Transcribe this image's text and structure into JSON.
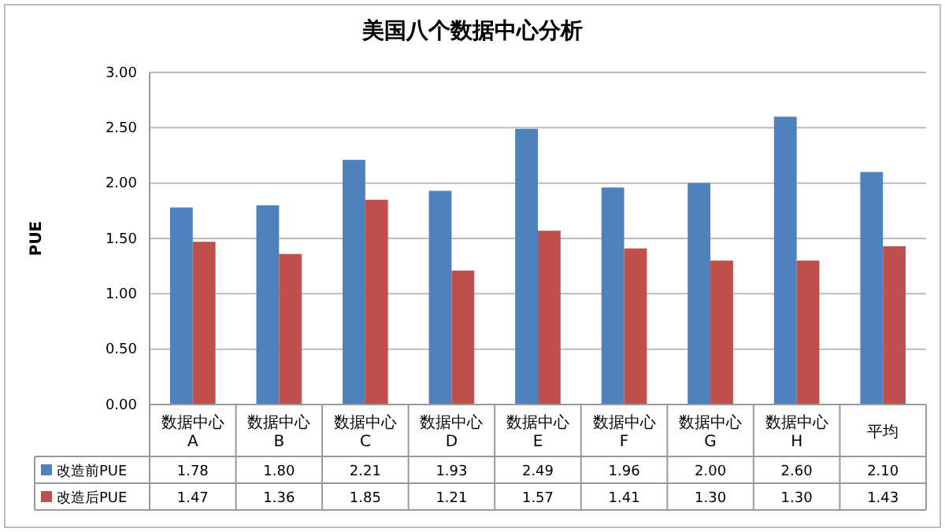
{
  "chart_data": {
    "type": "bar",
    "title": "美国八个数据中心分析",
    "ylabel": "PUE",
    "categories": [
      "数据中心\nA",
      "数据中心\nB",
      "数据中心\nC",
      "数据中心\nD",
      "数据中心\nE",
      "数据中心\nF",
      "数据中心\nG",
      "数据中心\nH",
      "平均"
    ],
    "series": [
      {
        "name": "改造前PUE",
        "color": "#4f81bd",
        "values": [
          1.78,
          1.8,
          2.21,
          1.93,
          2.49,
          1.96,
          2.0,
          2.6,
          2.1
        ],
        "value_labels": [
          "1.78",
          "1.80",
          "2.21",
          "1.93",
          "2.49",
          "1.96",
          "2.00",
          "2.60",
          "2.10"
        ]
      },
      {
        "name": "改造后PUE",
        "color": "#c0504d",
        "values": [
          1.47,
          1.36,
          1.85,
          1.21,
          1.57,
          1.41,
          1.3,
          1.3,
          1.43
        ],
        "value_labels": [
          "1.47",
          "1.36",
          "1.85",
          "1.21",
          "1.57",
          "1.41",
          "1.30",
          "1.30",
          "1.43"
        ]
      }
    ],
    "ylim": [
      0,
      3
    ],
    "yticks": [
      {
        "value": 0,
        "label": "0.00"
      },
      {
        "value": 0.5,
        "label": "0.50"
      },
      {
        "value": 1,
        "label": "1.00"
      },
      {
        "value": 1.5,
        "label": "1.50"
      },
      {
        "value": 2,
        "label": "2.00"
      },
      {
        "value": 2.5,
        "label": "2.50"
      },
      {
        "value": 3,
        "label": "3.00"
      }
    ],
    "grid": "y",
    "legend": "bottom",
    "data_labels": true
  }
}
